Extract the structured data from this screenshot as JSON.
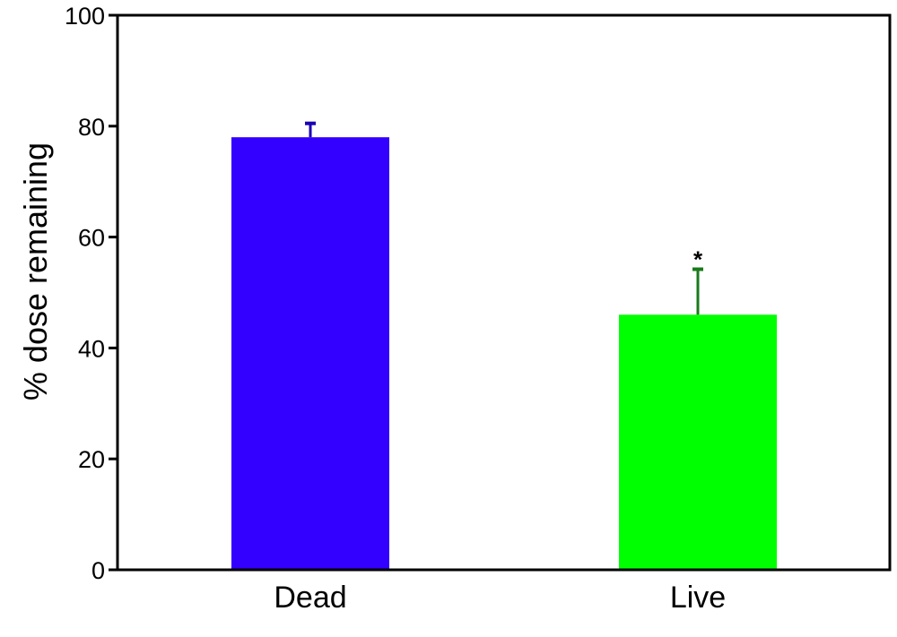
{
  "chart_data": {
    "type": "bar",
    "categories": [
      "Dead",
      "Live"
    ],
    "values": [
      78,
      46
    ],
    "error_upper": [
      80.5,
      54.2
    ],
    "annotations": [
      "",
      "*"
    ],
    "ylabel": "% dose remaining",
    "ylim": [
      0,
      100
    ],
    "yticks": [
      0,
      20,
      40,
      60,
      80,
      100
    ],
    "grid": false,
    "colors": {
      "bars": [
        "#3300ff",
        "#00ff00"
      ],
      "error_bars": [
        "#1a00b3",
        "#1a7a1a"
      ],
      "axis": "#000000"
    }
  }
}
